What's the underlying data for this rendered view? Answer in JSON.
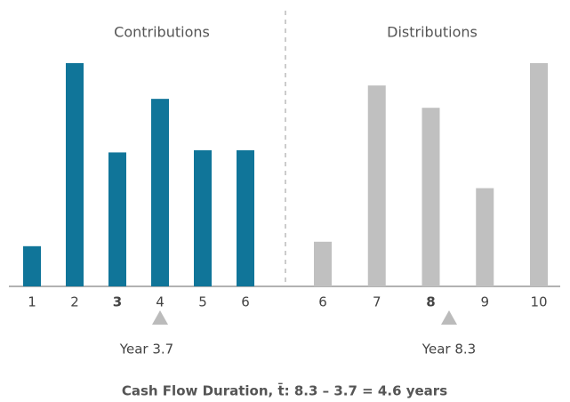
{
  "chart_data": [
    {
      "type": "bar",
      "title": "Contributions",
      "categories": [
        "1",
        "2",
        "3",
        "4",
        "5",
        "6"
      ],
      "values": [
        18,
        100,
        60,
        84,
        61,
        61
      ],
      "color": "#107599",
      "ylim": [
        0,
        100
      ],
      "highlight_index": 2,
      "annotation": "Year 3.7"
    },
    {
      "type": "bar",
      "title": "Distributions",
      "categories": [
        "6",
        "7",
        "8",
        "9",
        "10"
      ],
      "values": [
        20,
        90,
        80,
        44,
        100
      ],
      "color": "#c0c0c0",
      "ylim": [
        0,
        100
      ],
      "highlight_index": 2,
      "annotation": "Year 8.3"
    }
  ],
  "caption": "Cash Flow Duration, t̄:   8.3 – 3.7 = 4.6 years"
}
